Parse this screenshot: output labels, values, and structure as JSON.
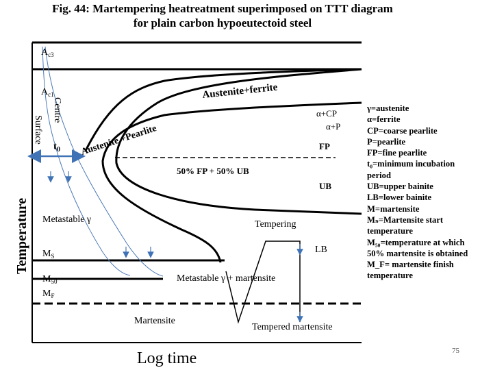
{
  "title": {
    "line1": "Fig. 44: Martempering heatreatment superimposed on TTT diagram",
    "line2": "for plain carbon hypoeutectoid steel"
  },
  "diagram": {
    "y_axis_label": "Temperature",
    "x_axis_label": "Log time",
    "ac3": "A",
    "ac3_sub": "c3",
    "ac1": "A",
    "ac1_sub": "c1",
    "surface": "Surface",
    "centre": "Centre",
    "t0": "t",
    "t0_sub": "0",
    "austenite_ferrite": "Austenite+ferrite",
    "austenite_pearlite": "Austenite +Pearlite",
    "alpha_cp": "α+CP",
    "alpha_p": "α+P",
    "fp": "FP",
    "fifty_fp_ub": "50% FP + 50% UB",
    "ub": "UB",
    "metastable_gamma": "Metastable γ",
    "tempering": "Tempering",
    "ms": "M",
    "ms_sub": "S",
    "lb": "LB",
    "m50": "M",
    "m50_sub": "50",
    "mf": "M",
    "mf_sub": "F",
    "metastable_gamma_martensite": "Metastable γ + martensite",
    "martensite": "Martensite",
    "tempered_martensite": "Tempered martensite"
  },
  "legend": [
    "γ=austenite",
    "α=ferrite",
    "CP=coarse pearlite",
    "P=pearlite",
    "FP=fine pearlite",
    "t₀=minimum incubation",
    "period",
    "UB=upper bainite",
    "LB=lower bainite",
    "M=martensite",
    "Mₛ=Martensite start",
    "temperature",
    "M₅₀=temperature at which",
    "50% martensite is obtained",
    "M_F= martensite finish",
    "temperature"
  ],
  "page_number": "75",
  "colors": {
    "ink": "#000000",
    "cooling_curve": "#4a78b8",
    "t0_arrow": "#3f73b5"
  }
}
